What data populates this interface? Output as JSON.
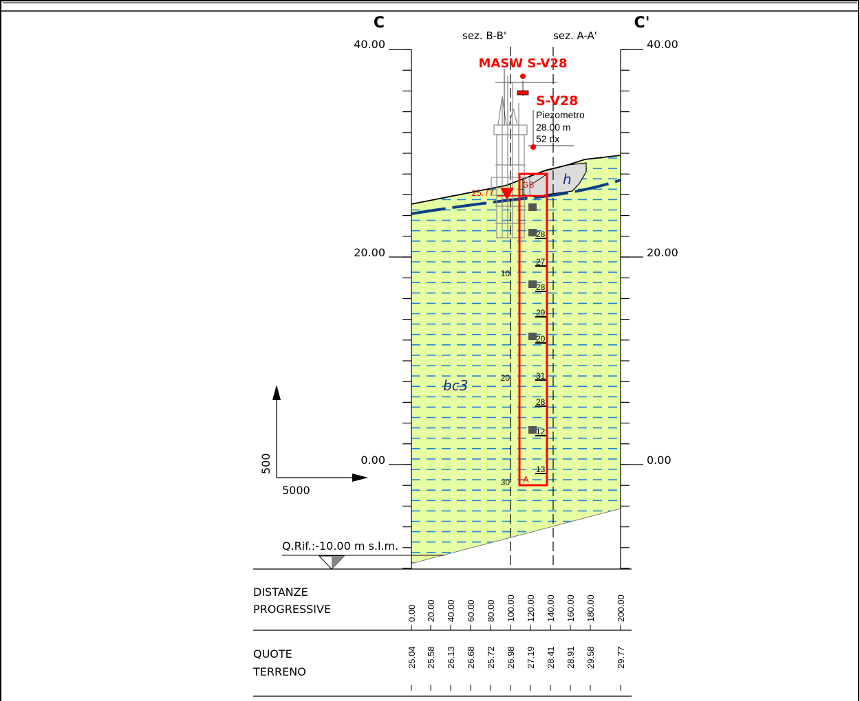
{
  "section": {
    "start_label": "C",
    "end_label": "C'",
    "cross_refs": [
      "sez. B-B'",
      "sez. A-A'"
    ]
  },
  "elevation_scale": {
    "labels": [
      "40.00",
      "20.00",
      "0.00"
    ],
    "values": [
      40,
      20,
      0
    ]
  },
  "scale_arrows": {
    "vertical": "500",
    "horizontal": "5000"
  },
  "reference_level": "Q.Rif.:-10.00 m s.l.m.",
  "masw": {
    "label": "MASW S-V28"
  },
  "borehole": {
    "id": "S-V28",
    "type": "Piezometro",
    "depth": "28.00 m",
    "offset": "52 dx",
    "water_level": "25.77",
    "gs_label": "GS",
    "a_label": "A",
    "depth_ticks": [
      "10",
      "20",
      "30"
    ],
    "spt_values": [
      "28",
      "27",
      "28",
      "29",
      "20",
      "31",
      "28",
      "12",
      "13"
    ]
  },
  "units": {
    "main": "bc3",
    "top": "h"
  },
  "table": {
    "rows": [
      {
        "title_line1": "DISTANZE",
        "title_line2": "PROGRESSIVE",
        "values": [
          "0.00",
          "20.00",
          "40.00",
          "60.00",
          "80.00",
          "100.00",
          "120.00",
          "140.00",
          "160.00",
          "180.00",
          "200.00"
        ]
      },
      {
        "title_line1": "QUOTE",
        "title_line2": "TERRENO",
        "values": [
          "25.04",
          "25.58",
          "26.13",
          "26.68",
          "25.72",
          "26.98",
          "27.19",
          "28.41",
          "28.91",
          "29.58",
          "29.77"
        ]
      }
    ]
  },
  "colors": {
    "soil_fill": "#e6ffa2",
    "dash_line": "#1f86d6",
    "water_table": "#0d3f86",
    "borehole": "#ff0000",
    "unit_label": "#1b2e86",
    "fill_material": "#dcdcdc"
  }
}
